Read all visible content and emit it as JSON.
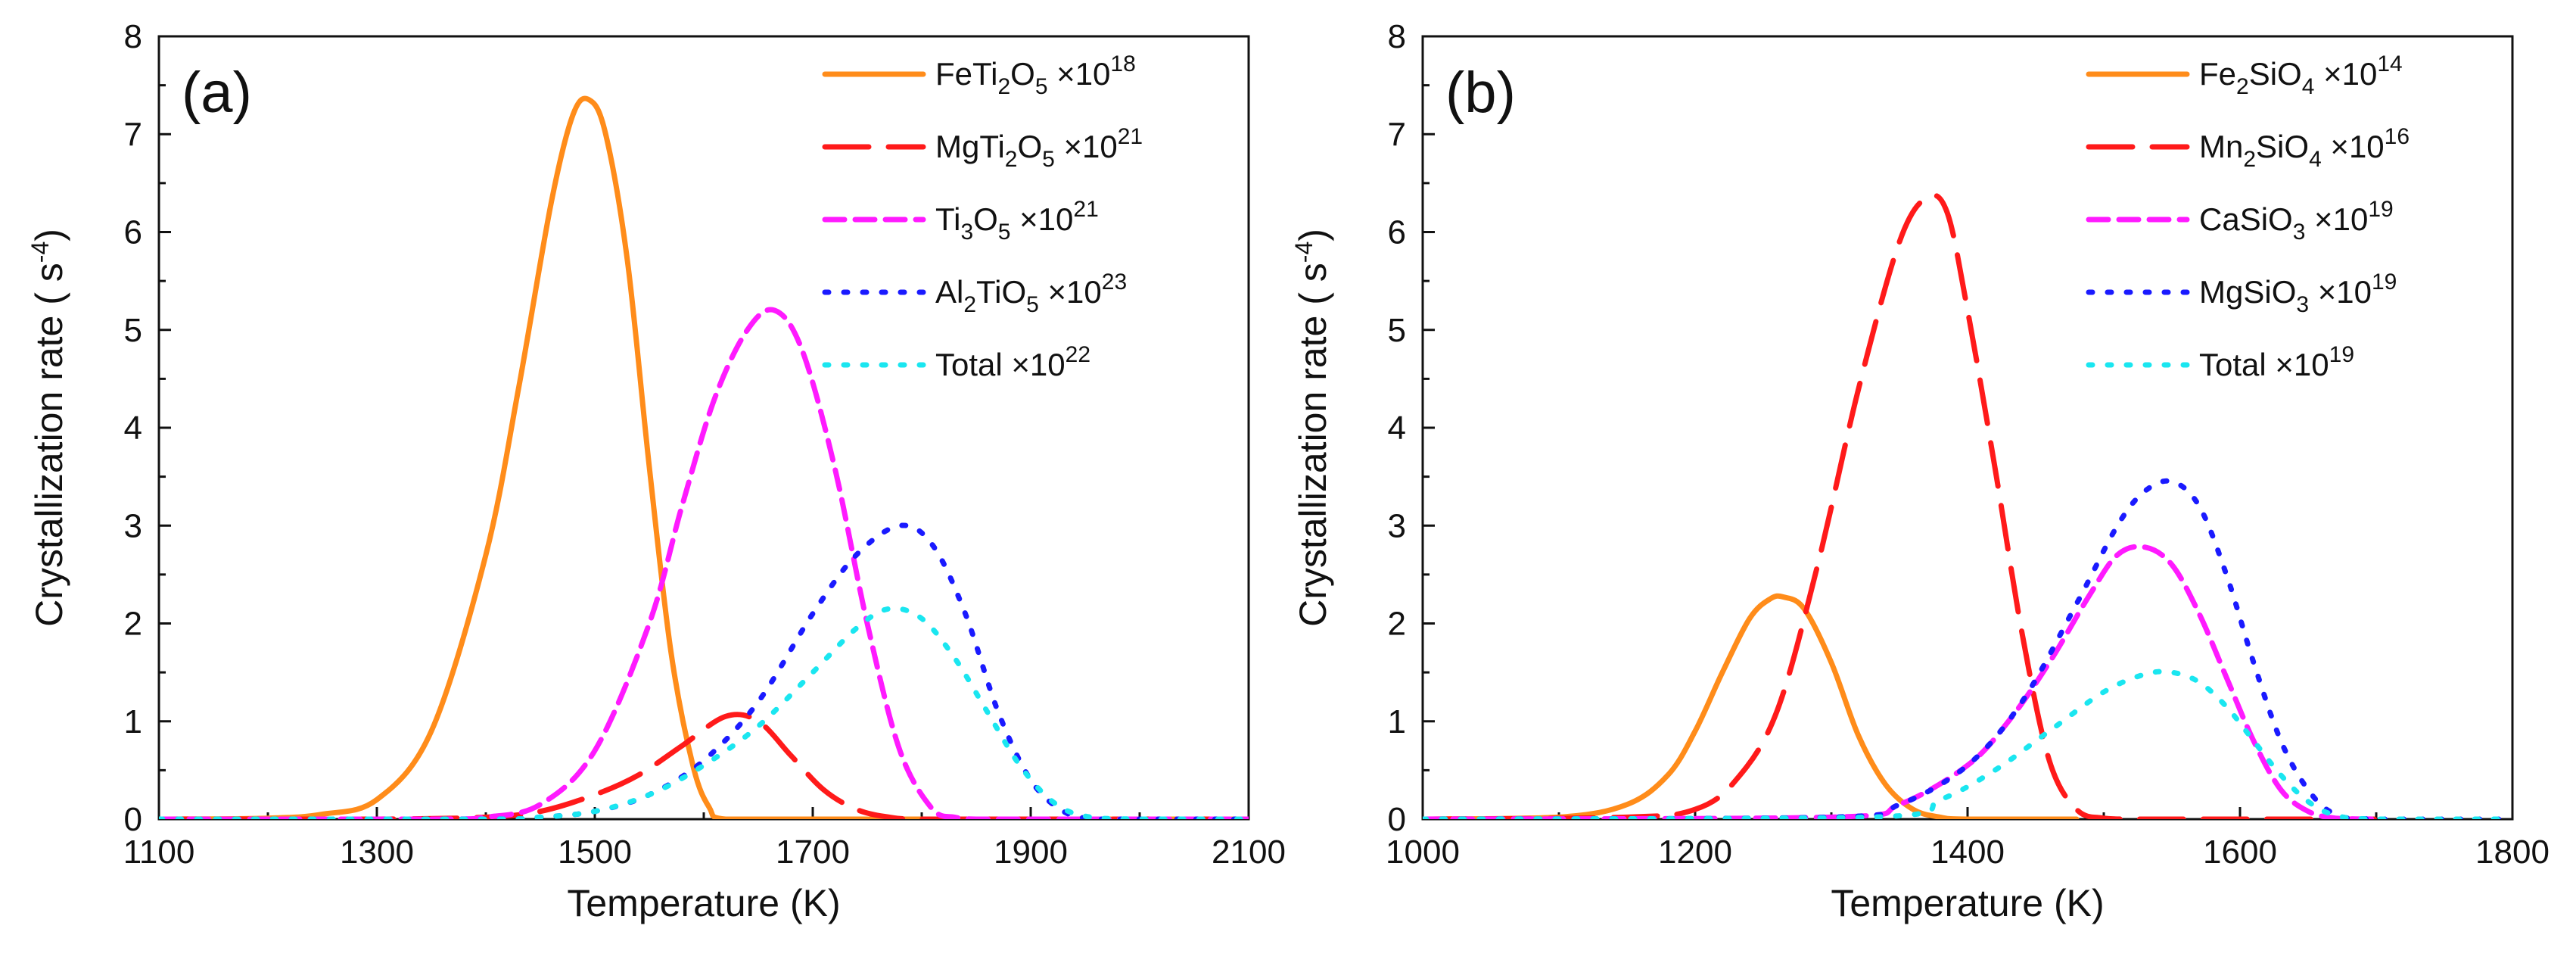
{
  "chart_data": [
    {
      "type": "line",
      "panel_label": "(a)",
      "xlabel": "Temperature (K)",
      "ylabel": "Crystallization rate ( s",
      "ylabel_sup": "-4",
      "ylabel_end": ")",
      "xlim": [
        1100,
        2100
      ],
      "ylim": [
        0,
        8
      ],
      "x_ticks": [
        "1100",
        "1300",
        "1500",
        "1700",
        "1900",
        "2100"
      ],
      "y_ticks": [
        "0",
        "1",
        "2",
        "3",
        "4",
        "5",
        "6",
        "7",
        "8"
      ],
      "legend_position": "top-right",
      "series": [
        {
          "name": "FeTi2O5",
          "color": "#FF8C1A",
          "dash": "solid",
          "legend": {
            "main": "FeTi",
            "sub1": "2",
            "mid": "O",
            "sub2": "5",
            "mult": " ×10",
            "exp": "18"
          },
          "x": [
            1100,
            1200,
            1250,
            1300,
            1350,
            1400,
            1430,
            1460,
            1480,
            1495,
            1510,
            1530,
            1550,
            1570,
            1590,
            1605,
            1620,
            1700,
            1800,
            1900,
            2000,
            2100
          ],
          "y": [
            0,
            0.01,
            0.05,
            0.2,
            0.9,
            2.7,
            4.4,
            6.3,
            7.2,
            7.35,
            7.0,
            5.7,
            3.6,
            1.7,
            0.55,
            0.12,
            0,
            0,
            0,
            0,
            0,
            0
          ]
        },
        {
          "name": "MgTi2O5",
          "color": "#FF1A1A",
          "dash": "long",
          "legend": {
            "main": "MgTi",
            "sub1": "2",
            "mid": "O",
            "sub2": "5",
            "mult": " ×10",
            "exp": "21"
          },
          "x": [
            1100,
            1300,
            1400,
            1450,
            1500,
            1540,
            1580,
            1620,
            1650,
            1680,
            1710,
            1740,
            1770,
            1800,
            1900,
            2100
          ],
          "y": [
            0,
            0,
            0.02,
            0.08,
            0.25,
            0.45,
            0.75,
            1.05,
            1.0,
            0.65,
            0.3,
            0.1,
            0.02,
            0,
            0,
            0
          ]
        },
        {
          "name": "Ti3O5",
          "color": "#FF1AFF",
          "dash": "short",
          "legend": {
            "main": "Ti",
            "sub1": "3",
            "mid": "O",
            "sub2": "5",
            "mult": " ×10",
            "exp": "21"
          },
          "x": [
            1100,
            1350,
            1400,
            1450,
            1500,
            1550,
            1580,
            1610,
            1640,
            1665,
            1690,
            1720,
            1750,
            1780,
            1810,
            1830,
            1850,
            1900,
            2100
          ],
          "y": [
            0,
            0,
            0.02,
            0.15,
            0.7,
            2.0,
            3.2,
            4.3,
            5.0,
            5.2,
            4.8,
            3.6,
            2.0,
            0.7,
            0.1,
            0.02,
            0,
            0,
            0
          ]
        },
        {
          "name": "Al2TiO5",
          "color": "#1A1AFF",
          "dash": "dot",
          "legend": {
            "main": "Al",
            "sub1": "2",
            "mid": "TiO",
            "sub2": "5",
            "mult": " ×10",
            "exp": "23"
          },
          "x": [
            1100,
            1400,
            1450,
            1500,
            1550,
            1600,
            1650,
            1700,
            1740,
            1780,
            1810,
            1840,
            1870,
            1900,
            1930,
            1960,
            2000,
            2100
          ],
          "y": [
            0,
            0,
            0.02,
            0.08,
            0.25,
            0.6,
            1.2,
            2.1,
            2.7,
            3.0,
            2.8,
            2.1,
            1.1,
            0.4,
            0.08,
            0,
            0,
            0
          ]
        },
        {
          "name": "Total",
          "color": "#1AE6F0",
          "dash": "dot",
          "legend": {
            "main": "Total",
            "sub1": "",
            "mid": "",
            "sub2": "",
            "mult": " ×10",
            "exp": "22"
          },
          "x": [
            1100,
            1400,
            1450,
            1500,
            1550,
            1600,
            1650,
            1700,
            1740,
            1770,
            1800,
            1830,
            1860,
            1890,
            1920,
            1950,
            2000,
            2100
          ],
          "y": [
            0,
            0,
            0.02,
            0.08,
            0.25,
            0.55,
            0.95,
            1.5,
            1.95,
            2.15,
            2.05,
            1.65,
            1.1,
            0.55,
            0.18,
            0.03,
            0,
            0
          ]
        }
      ]
    },
    {
      "type": "line",
      "panel_label": "(b)",
      "xlabel": "Temperature (K)",
      "ylabel": "Crystallization rate ( s",
      "ylabel_sup": "-4",
      "ylabel_end": ")",
      "xlim": [
        1000,
        1800
      ],
      "ylim": [
        0,
        8
      ],
      "x_ticks": [
        "1000",
        "1200",
        "1400",
        "1600",
        "1800"
      ],
      "y_ticks": [
        "0",
        "1",
        "2",
        "3",
        "4",
        "5",
        "6",
        "7",
        "8"
      ],
      "legend_position": "top-right",
      "series": [
        {
          "name": "Fe2SiO4",
          "color": "#FF8C1A",
          "dash": "solid",
          "legend": {
            "main": "Fe",
            "sub1": "2",
            "mid": "SiO",
            "sub2": "4",
            "mult": " ×10",
            "exp": "14"
          },
          "x": [
            1000,
            1100,
            1150,
            1180,
            1200,
            1220,
            1240,
            1255,
            1265,
            1280,
            1300,
            1320,
            1340,
            1360,
            1380,
            1400,
            1480
          ],
          "y": [
            0,
            0.02,
            0.15,
            0.45,
            0.9,
            1.5,
            2.05,
            2.25,
            2.27,
            2.15,
            1.6,
            0.85,
            0.35,
            0.1,
            0.02,
            0,
            0
          ]
        },
        {
          "name": "Mn2SiO4",
          "color": "#FF1A1A",
          "dash": "long",
          "legend": {
            "main": "Mn",
            "sub1": "2",
            "mid": "SiO",
            "sub2": "4",
            "mult": "  ×10",
            "exp": "16"
          },
          "x": [
            1000,
            1150,
            1200,
            1230,
            1260,
            1290,
            1320,
            1350,
            1370,
            1385,
            1400,
            1420,
            1440,
            1460,
            1480,
            1500,
            1520,
            1600,
            1700
          ],
          "y": [
            0,
            0.02,
            0.1,
            0.4,
            1.1,
            2.6,
            4.4,
            5.9,
            6.35,
            6.2,
            5.2,
            3.6,
            1.9,
            0.6,
            0.1,
            0.01,
            0,
            0,
            0
          ]
        },
        {
          "name": "CaSiO3",
          "color": "#FF1AFF",
          "dash": "short",
          "legend": {
            "main": "CaSiO",
            "sub1": "",
            "mid": "",
            "sub2": "3",
            "mult": " ×10",
            "exp": "19"
          },
          "x": [
            1000,
            1300,
            1350,
            1400,
            1430,
            1460,
            1490,
            1510,
            1530,
            1550,
            1570,
            1590,
            1610,
            1630,
            1650,
            1670,
            1700
          ],
          "y": [
            0,
            0.02,
            0.15,
            0.55,
            1.0,
            1.6,
            2.3,
            2.7,
            2.78,
            2.6,
            2.1,
            1.45,
            0.8,
            0.3,
            0.08,
            0.01,
            0
          ]
        },
        {
          "name": "MgSiO3",
          "color": "#1A1AFF",
          "dash": "dot",
          "legend": {
            "main": "MgSiO",
            "sub1": "",
            "mid": "",
            "sub2": "3",
            "mult": " ×10",
            "exp": "19"
          },
          "x": [
            1000,
            1300,
            1350,
            1400,
            1440,
            1480,
            1510,
            1530,
            1550,
            1570,
            1590,
            1610,
            1630,
            1650,
            1670,
            1700,
            1800
          ],
          "y": [
            0,
            0.02,
            0.15,
            0.55,
            1.2,
            2.2,
            3.0,
            3.35,
            3.45,
            3.2,
            2.5,
            1.6,
            0.8,
            0.3,
            0.05,
            0,
            0
          ]
        },
        {
          "name": "Total",
          "color": "#1AE6F0",
          "dash": "dot",
          "legend": {
            "main": "Total",
            "sub1": "",
            "mid": "",
            "sub2": "",
            "mult": " ×10",
            "exp": "19"
          },
          "x": [
            1000,
            1330,
            1380,
            1420,
            1460,
            1500,
            1530,
            1550,
            1570,
            1590,
            1610,
            1630,
            1650,
            1670,
            1700,
            1800
          ],
          "y": [
            0,
            0.02,
            0.2,
            0.5,
            0.9,
            1.3,
            1.48,
            1.5,
            1.4,
            1.15,
            0.8,
            0.45,
            0.18,
            0.04,
            0,
            0
          ]
        }
      ]
    }
  ]
}
